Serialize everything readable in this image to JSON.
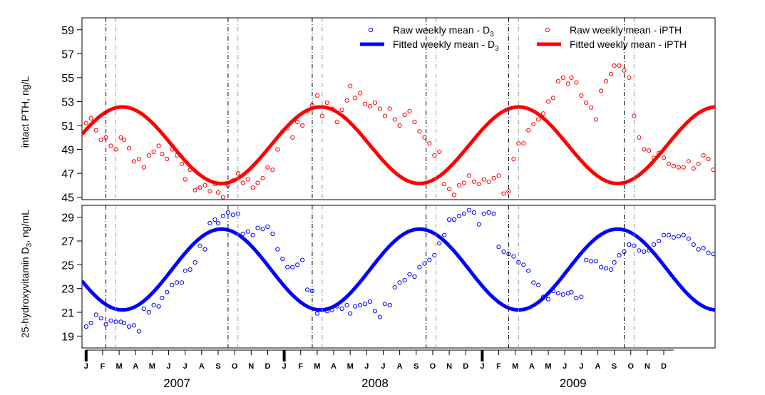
{
  "chart_data": [
    {
      "type": "line",
      "panel": "top",
      "ylabel": "intact PTH, ng/L",
      "ylim": [
        44.8,
        60
      ],
      "yticks": [
        45,
        47,
        49,
        51,
        53,
        55,
        57,
        59
      ],
      "x_unit": "months since Jan 2007",
      "xlim": [
        0,
        36
      ],
      "fitted": {
        "name": "Fitted weekly mean - iPTH",
        "color": "#ff0000",
        "mean": 49.35,
        "amplitude": 3.2,
        "peak_month": 2.2,
        "period_months": 12
      },
      "raw": {
        "name": "Raw weekly mean - iPTH",
        "color": "#ff0000",
        "points": [
          [
            0.0,
            51.2
          ],
          [
            0.3,
            51.6
          ],
          [
            0.6,
            50.6
          ],
          [
            0.9,
            49.8
          ],
          [
            1.2,
            50.0
          ],
          [
            1.5,
            49.3
          ],
          [
            1.8,
            49.0
          ],
          [
            2.1,
            50.0
          ],
          [
            2.3,
            49.8
          ],
          [
            2.6,
            49.1
          ],
          [
            2.9,
            48.0
          ],
          [
            3.2,
            48.2
          ],
          [
            3.5,
            47.5
          ],
          [
            3.8,
            48.5
          ],
          [
            4.1,
            48.8
          ],
          [
            4.4,
            49.3
          ],
          [
            4.6,
            48.6
          ],
          [
            4.9,
            48.2
          ],
          [
            5.2,
            49.0
          ],
          [
            5.5,
            48.5
          ],
          [
            5.8,
            47.8
          ],
          [
            6.0,
            46.5
          ],
          [
            6.3,
            47.3
          ],
          [
            6.6,
            45.6
          ],
          [
            6.9,
            45.8
          ],
          [
            7.2,
            46.0
          ],
          [
            7.5,
            45.5
          ],
          [
            7.8,
            46.1
          ],
          [
            8.0,
            45.4
          ],
          [
            8.3,
            45.0
          ],
          [
            8.6,
            46.0
          ],
          [
            8.9,
            46.4
          ],
          [
            9.2,
            47.0
          ],
          [
            9.5,
            46.2
          ],
          [
            9.8,
            46.5
          ],
          [
            10.1,
            45.8
          ],
          [
            10.4,
            46.2
          ],
          [
            10.7,
            46.6
          ],
          [
            11.0,
            47.5
          ],
          [
            11.3,
            47.3
          ],
          [
            11.6,
            49.0
          ],
          [
            11.9,
            50.5
          ],
          [
            12.2,
            50.8
          ],
          [
            12.5,
            50.0
          ],
          [
            12.8,
            51.3
          ],
          [
            13.1,
            51.0
          ],
          [
            13.4,
            52.2
          ],
          [
            13.7,
            52.7
          ],
          [
            14.0,
            53.5
          ],
          [
            14.3,
            51.8
          ],
          [
            14.6,
            52.9
          ],
          [
            14.9,
            52.4
          ],
          [
            15.2,
            51.3
          ],
          [
            15.5,
            52.3
          ],
          [
            15.8,
            53.1
          ],
          [
            16.0,
            54.3
          ],
          [
            16.3,
            53.3
          ],
          [
            16.6,
            53.7
          ],
          [
            16.9,
            52.8
          ],
          [
            17.2,
            52.6
          ],
          [
            17.5,
            52.9
          ],
          [
            17.8,
            52.4
          ],
          [
            18.1,
            51.8
          ],
          [
            18.4,
            52.4
          ],
          [
            18.7,
            51.5
          ],
          [
            19.0,
            51.0
          ],
          [
            19.3,
            51.9
          ],
          [
            19.6,
            52.2
          ],
          [
            19.9,
            51.3
          ],
          [
            20.2,
            50.5
          ],
          [
            20.5,
            50.0
          ],
          [
            20.8,
            49.5
          ],
          [
            21.1,
            48.5
          ],
          [
            21.4,
            48.8
          ],
          [
            21.7,
            46.1
          ],
          [
            22.0,
            45.7
          ],
          [
            22.3,
            45.2
          ],
          [
            22.6,
            46.0
          ],
          [
            22.9,
            46.2
          ],
          [
            23.2,
            46.8
          ],
          [
            23.5,
            46.3
          ],
          [
            23.8,
            46.1
          ],
          [
            24.1,
            46.5
          ],
          [
            24.4,
            46.3
          ],
          [
            24.7,
            46.6
          ],
          [
            25.0,
            46.8
          ],
          [
            25.3,
            45.3
          ],
          [
            25.6,
            45.5
          ],
          [
            25.9,
            48.2
          ],
          [
            26.2,
            49.5
          ],
          [
            26.5,
            49.5
          ],
          [
            26.8,
            50.6
          ],
          [
            27.1,
            51.1
          ],
          [
            27.4,
            51.5
          ],
          [
            27.7,
            52.0
          ],
          [
            28.0,
            53.0
          ],
          [
            28.3,
            53.3
          ],
          [
            28.6,
            54.7
          ],
          [
            28.9,
            55.0
          ],
          [
            29.2,
            54.5
          ],
          [
            29.4,
            55.0
          ],
          [
            29.7,
            54.6
          ],
          [
            30.0,
            53.5
          ],
          [
            30.3,
            52.9
          ],
          [
            30.6,
            52.5
          ],
          [
            30.9,
            51.5
          ],
          [
            31.2,
            53.9
          ],
          [
            31.5,
            54.7
          ],
          [
            31.8,
            55.3
          ],
          [
            32.0,
            56.0
          ],
          [
            32.3,
            56.0
          ],
          [
            32.6,
            55.6
          ],
          [
            32.9,
            55.0
          ],
          [
            33.2,
            51.8
          ],
          [
            33.5,
            50.0
          ],
          [
            33.8,
            49.0
          ],
          [
            34.1,
            48.9
          ],
          [
            34.4,
            48.3
          ],
          [
            34.7,
            48.7
          ],
          [
            35.0,
            48.3
          ],
          [
            35.3,
            47.8
          ],
          [
            35.6,
            47.6
          ],
          [
            35.9,
            47.5
          ],
          [
            36.2,
            47.5
          ],
          [
            36.5,
            48.0
          ],
          [
            36.8,
            47.4
          ],
          [
            37.1,
            47.8
          ],
          [
            37.4,
            48.5
          ],
          [
            37.7,
            48.2
          ],
          [
            38.0,
            47.3
          ],
          [
            38.3,
            47.0
          ],
          [
            38.6,
            47.2
          ],
          [
            38.9,
            47.0
          ],
          [
            39.2,
            46.4
          ],
          [
            39.5,
            45.0
          ],
          [
            39.8,
            44.8
          ],
          [
            40.1,
            45.7
          ],
          [
            40.4,
            46.7
          ],
          [
            40.7,
            46.6
          ],
          [
            41.0,
            45.6
          ],
          [
            41.3,
            45.2
          ],
          [
            41.6,
            46.8
          ]
        ]
      }
    },
    {
      "type": "line",
      "panel": "bottom",
      "ylabel": "25-hydroxyvitamin D",
      "ylabel_sub": "3",
      "ylabel_unit": ", ng/mL",
      "ylim": [
        18,
        30
      ],
      "yticks": [
        19,
        21,
        23,
        25,
        27,
        29
      ],
      "x_unit": "months since Jan 2007",
      "xlim": [
        0,
        36
      ],
      "fitted": {
        "name": "Fitted weekly mean - D",
        "name_sub": "3",
        "color": "#0000ff",
        "mean": 24.6,
        "amplitude": 3.4,
        "peak_month": 8.2,
        "period_months": 12
      },
      "raw": {
        "name": "Raw weekly mean - D",
        "name_sub": "3",
        "color": "#0000ff",
        "points": [
          [
            0.0,
            19.8
          ],
          [
            0.3,
            20.1
          ],
          [
            0.6,
            20.8
          ],
          [
            0.9,
            20.5
          ],
          [
            1.2,
            20.0
          ],
          [
            1.5,
            20.3
          ],
          [
            1.8,
            20.2
          ],
          [
            2.1,
            20.2
          ],
          [
            2.3,
            20.1
          ],
          [
            2.6,
            19.8
          ],
          [
            2.9,
            19.9
          ],
          [
            3.2,
            19.4
          ],
          [
            3.5,
            21.3
          ],
          [
            3.8,
            21.0
          ],
          [
            4.1,
            21.6
          ],
          [
            4.4,
            21.5
          ],
          [
            4.6,
            22.2
          ],
          [
            4.9,
            22.7
          ],
          [
            5.2,
            23.3
          ],
          [
            5.5,
            23.5
          ],
          [
            5.8,
            23.5
          ],
          [
            6.0,
            24.5
          ],
          [
            6.3,
            24.6
          ],
          [
            6.6,
            25.2
          ],
          [
            6.9,
            26.6
          ],
          [
            7.2,
            26.3
          ],
          [
            7.5,
            28.5
          ],
          [
            7.8,
            28.8
          ],
          [
            8.0,
            28.5
          ],
          [
            8.3,
            29.1
          ],
          [
            8.6,
            29.4
          ],
          [
            8.9,
            29.2
          ],
          [
            9.2,
            29.3
          ],
          [
            9.5,
            27.6
          ],
          [
            9.8,
            27.8
          ],
          [
            10.1,
            27.5
          ],
          [
            10.4,
            28.1
          ],
          [
            10.7,
            28.0
          ],
          [
            11.0,
            28.2
          ],
          [
            11.3,
            27.6
          ],
          [
            11.6,
            26.3
          ],
          [
            11.9,
            25.5
          ],
          [
            12.2,
            24.8
          ],
          [
            12.5,
            24.8
          ],
          [
            12.8,
            25.0
          ],
          [
            13.1,
            25.4
          ],
          [
            13.4,
            22.9
          ],
          [
            13.7,
            22.8
          ],
          [
            14.0,
            20.9
          ],
          [
            14.3,
            21.2
          ],
          [
            14.6,
            21.1
          ],
          [
            14.9,
            21.2
          ],
          [
            15.2,
            21.5
          ],
          [
            15.5,
            21.3
          ],
          [
            15.8,
            21.6
          ],
          [
            16.0,
            20.9
          ],
          [
            16.3,
            21.5
          ],
          [
            16.6,
            21.6
          ],
          [
            16.9,
            21.7
          ],
          [
            17.2,
            21.9
          ],
          [
            17.5,
            21.1
          ],
          [
            17.8,
            20.6
          ],
          [
            18.1,
            21.7
          ],
          [
            18.4,
            21.6
          ],
          [
            18.7,
            23.1
          ],
          [
            19.0,
            23.5
          ],
          [
            19.3,
            23.7
          ],
          [
            19.6,
            24.2
          ],
          [
            19.9,
            24.0
          ],
          [
            20.2,
            24.8
          ],
          [
            20.5,
            25.1
          ],
          [
            20.8,
            25.4
          ],
          [
            21.1,
            25.8
          ],
          [
            21.4,
            26.8
          ],
          [
            21.7,
            27.5
          ],
          [
            22.0,
            28.8
          ],
          [
            22.3,
            28.8
          ],
          [
            22.6,
            29.1
          ],
          [
            22.9,
            29.3
          ],
          [
            23.2,
            29.6
          ],
          [
            23.5,
            29.4
          ],
          [
            23.8,
            28.4
          ],
          [
            24.1,
            29.3
          ],
          [
            24.4,
            29.4
          ],
          [
            24.7,
            29.3
          ],
          [
            25.0,
            26.5
          ],
          [
            25.3,
            26.1
          ],
          [
            25.6,
            25.9
          ],
          [
            25.9,
            25.7
          ],
          [
            26.2,
            25.2
          ],
          [
            26.5,
            25.0
          ],
          [
            26.8,
            24.5
          ],
          [
            27.1,
            23.5
          ],
          [
            27.4,
            23.3
          ],
          [
            27.7,
            22.3
          ],
          [
            28.0,
            22.1
          ],
          [
            28.3,
            22.8
          ],
          [
            28.6,
            22.6
          ],
          [
            28.9,
            22.5
          ],
          [
            29.2,
            22.6
          ],
          [
            29.4,
            22.7
          ],
          [
            29.7,
            22.2
          ],
          [
            30.0,
            22.3
          ],
          [
            30.3,
            25.4
          ],
          [
            30.6,
            25.3
          ],
          [
            30.9,
            25.3
          ],
          [
            31.2,
            24.8
          ],
          [
            31.5,
            24.7
          ],
          [
            31.8,
            24.6
          ],
          [
            32.0,
            25.2
          ],
          [
            32.3,
            25.8
          ],
          [
            32.6,
            26.1
          ],
          [
            32.9,
            26.7
          ],
          [
            33.2,
            26.6
          ],
          [
            33.5,
            26.2
          ],
          [
            33.8,
            26.1
          ],
          [
            34.1,
            26.2
          ],
          [
            34.4,
            26.7
          ],
          [
            34.7,
            27.0
          ],
          [
            35.0,
            27.5
          ],
          [
            35.3,
            27.5
          ],
          [
            35.6,
            27.3
          ],
          [
            35.9,
            27.4
          ],
          [
            36.2,
            27.5
          ],
          [
            36.5,
            27.2
          ],
          [
            36.8,
            26.7
          ],
          [
            37.1,
            26.3
          ],
          [
            37.4,
            26.4
          ],
          [
            37.7,
            26.0
          ],
          [
            38.0,
            25.9
          ],
          [
            38.3,
            25.5
          ],
          [
            38.6,
            25.2
          ],
          [
            38.9,
            24.6
          ],
          [
            39.2,
            23.9
          ],
          [
            39.5,
            23.2
          ],
          [
            39.8,
            23.0
          ],
          [
            40.1,
            22.6
          ],
          [
            40.4,
            22.3
          ],
          [
            40.7,
            22.1
          ],
          [
            41.0,
            21.9
          ],
          [
            41.3,
            21.3
          ],
          [
            41.6,
            21.5
          ]
        ]
      }
    }
  ],
  "x_axis": {
    "months": [
      "J",
      "F",
      "M",
      "A",
      "M",
      "J",
      "J",
      "A",
      "S",
      "O",
      "N",
      "D"
    ],
    "years": [
      "2007",
      "2008",
      "2009"
    ]
  },
  "vlines": {
    "black_dashdot": [
      1.2,
      8.6,
      13.7,
      20.6,
      25.6,
      32.6
    ],
    "gray_dashdot": [
      1.8,
      9.2,
      14.3,
      21.2,
      26.2,
      33.2
    ]
  },
  "legend": {
    "placement": "top-right",
    "items": [
      {
        "label": "Raw weekly mean - D",
        "sub": "3",
        "color": "#0000ff",
        "kind": "point"
      },
      {
        "label": "Raw weekly mean - iPTH",
        "sub": "",
        "color": "#ff0000",
        "kind": "point"
      },
      {
        "label": "Fitted weekly mean - D",
        "sub": "3",
        "color": "#0000ff",
        "kind": "line"
      },
      {
        "label": "Fitted weekly mean - iPTH",
        "sub": "",
        "color": "#ff0000",
        "kind": "line"
      }
    ]
  }
}
